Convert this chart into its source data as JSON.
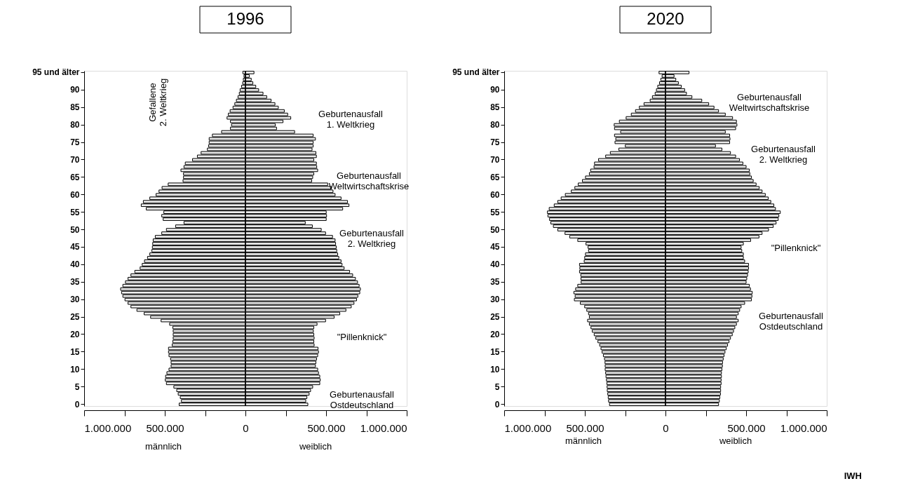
{
  "chart_data": [
    {
      "type": "bar",
      "orientation": "horizontal",
      "stacked": true,
      "title": "1996",
      "categories": [
        "95 und älter",
        null,
        null,
        null,
        null,
        "90",
        null,
        null,
        null,
        null,
        "85",
        null,
        null,
        null,
        null,
        "80",
        null,
        null,
        null,
        null,
        "75",
        null,
        null,
        null,
        null,
        "70",
        null,
        null,
        null,
        null,
        "65",
        null,
        null,
        null,
        null,
        "60",
        null,
        null,
        null,
        null,
        "55",
        null,
        null,
        null,
        null,
        "50",
        null,
        null,
        null,
        null,
        "45",
        null,
        null,
        null,
        null,
        "40",
        null,
        null,
        null,
        null,
        "35",
        null,
        null,
        null,
        null,
        "30",
        null,
        null,
        null,
        null,
        "25",
        null,
        null,
        null,
        null,
        "20",
        null,
        null,
        null,
        null,
        "15",
        null,
        null,
        null,
        null,
        "10",
        null,
        null,
        null,
        null,
        "5",
        null,
        null,
        null,
        null,
        "0"
      ],
      "series": [
        {
          "color": "#eeeeee",
          "values": [
            -16000,
            -9000,
            -13000,
            -17000,
            -24000,
            -33000,
            -38000,
            -46000,
            -56000,
            -66000,
            -77000,
            -95000,
            -106000,
            -114000,
            -93000,
            -86000,
            -93000,
            -148000,
            -205000,
            -225000,
            -225000,
            -228000,
            -236000,
            -275000,
            -298000,
            -328000,
            -373000,
            -381000,
            -400000,
            -384000,
            -384000,
            -387000,
            -479000,
            -517000,
            -536000,
            -554000,
            -593000,
            -633000,
            -646000,
            -615000,
            -506000,
            -519000,
            -510000,
            -381000,
            -433000,
            -490000,
            -519000,
            -559000,
            -572000,
            -575000,
            -577000,
            -580000,
            -593000,
            -607000,
            -626000,
            -640000,
            -653000,
            -686000,
            -710000,
            -728000,
            -744000,
            -760000,
            -774000,
            -768000,
            -760000,
            -747000,
            -728000,
            -710000,
            -673000,
            -628000,
            -588000,
            -523000,
            -470000,
            -450000,
            -448000,
            -448000,
            -448000,
            -450000,
            -454000,
            -477000,
            -477000,
            -474000,
            -464000,
            -461000,
            -461000,
            -474000,
            -487000,
            -495000,
            -497000,
            -490000,
            -444000,
            -426000,
            -417000,
            -404000,
            -397000,
            -411000
          ]
        },
        {
          "color": "#eeeeee",
          "values": [
            53000,
            24000,
            36000,
            46000,
            64000,
            82000,
            109000,
            132000,
            159000,
            183000,
            204000,
            241000,
            262000,
            281000,
            233000,
            185000,
            193000,
            305000,
            420000,
            434000,
            420000,
            420000,
            413000,
            437000,
            440000,
            424000,
            440000,
            442000,
            448000,
            424000,
            417000,
            411000,
            510000,
            532000,
            543000,
            556000,
            593000,
            633000,
            642000,
            603000,
            501000,
            503000,
            501000,
            371000,
            415000,
            470000,
            497000,
            540000,
            556000,
            559000,
            563000,
            566000,
            572000,
            579000,
            593000,
            599000,
            612000,
            646000,
            665000,
            682000,
            695000,
            705000,
            713000,
            709000,
            697000,
            689000,
            673000,
            656000,
            623000,
            585000,
            550000,
            497000,
            444000,
            424000,
            421000,
            424000,
            426000,
            424000,
            426000,
            450000,
            453000,
            448000,
            441000,
            437000,
            434000,
            448000,
            453000,
            461000,
            464000,
            461000,
            417000,
            404000,
            395000,
            381000,
            374000,
            387000
          ]
        }
      ],
      "xlim": [
        -1000000,
        1000000
      ],
      "xticks": [
        {
          "value": -1000000,
          "label": "1.000.000"
        },
        {
          "value": -750000,
          "label": null
        },
        {
          "value": -500000,
          "label": "500.000"
        },
        {
          "value": -250000,
          "label": null
        },
        0,
        {
          "value": 250000,
          "label": null
        },
        {
          "value": 500000,
          "label": "500.000"
        },
        {
          "value": 750000,
          "label": null
        },
        {
          "value": 1000000,
          "label": "1.000.000"
        }
      ],
      "annotations": [
        "Gefallene\n2. Weltkrieg",
        "Geburtenausfall\n1. Weltkrieg",
        "Geburtenausfall\nWeltwirtschaftskrise",
        "Geburtenausfall\n2. Weltkrieg",
        "\"Pillenknick\"",
        "Geburtenausfall\nOstdeutschland",
        "männlich",
        "weiblich"
      ]
    },
    {
      "type": "bar",
      "orientation": "horizontal",
      "stacked": true,
      "title": "2020",
      "categories": [
        "95 und älter",
        null,
        null,
        null,
        null,
        "90",
        null,
        null,
        null,
        null,
        "85",
        null,
        null,
        null,
        null,
        "80",
        null,
        null,
        null,
        null,
        "75",
        null,
        null,
        null,
        null,
        "70",
        null,
        null,
        null,
        null,
        "65",
        null,
        null,
        null,
        null,
        "60",
        null,
        null,
        null,
        null,
        "55",
        null,
        null,
        null,
        null,
        "50",
        null,
        null,
        null,
        null,
        "45",
        null,
        null,
        null,
        null,
        "40",
        null,
        null,
        null,
        null,
        "35",
        null,
        null,
        null,
        null,
        "30",
        null,
        null,
        null,
        null,
        "25",
        null,
        null,
        null,
        null,
        "20",
        null,
        null,
        null,
        null,
        "15",
        null,
        null,
        null,
        null,
        "10",
        null,
        null,
        null,
        null,
        "5",
        null,
        null,
        null,
        null,
        "0"
      ],
      "series": [
        {
          "color": "#eeeeee",
          "values": [
            -40000,
            -21000,
            -29000,
            -37000,
            -48000,
            -56000,
            -64000,
            -81000,
            -95000,
            -133000,
            -162000,
            -186000,
            -212000,
            -244000,
            -286000,
            -318000,
            -316000,
            -278000,
            -316000,
            -308000,
            -313000,
            -249000,
            -289000,
            -342000,
            -371000,
            -415000,
            -440000,
            -443000,
            -464000,
            -472000,
            -496000,
            -515000,
            -541000,
            -562000,
            -584000,
            -621000,
            -647000,
            -668000,
            -690000,
            -721000,
            -732000,
            -729000,
            -719000,
            -711000,
            -695000,
            -668000,
            -623000,
            -594000,
            -544000,
            -493000,
            -480000,
            -477000,
            -496000,
            -501000,
            -504000,
            -533000,
            -531000,
            -533000,
            -525000,
            -524000,
            -523000,
            -544000,
            -557000,
            -568000,
            -560000,
            -565000,
            -528000,
            -501000,
            -488000,
            -477000,
            -472000,
            -483000,
            -472000,
            -462000,
            -454000,
            -442000,
            -432000,
            -419000,
            -408000,
            -400000,
            -393000,
            -385000,
            -378000,
            -375000,
            -374000,
            -374000,
            -371000,
            -369000,
            -366000,
            -363000,
            -362000,
            -361000,
            -358000,
            -355000,
            -353000,
            -347000
          ]
        },
        {
          "color": "#eeeeee",
          "values": [
            146000,
            53000,
            64000,
            80000,
            98000,
            119000,
            130000,
            164000,
            225000,
            268000,
            301000,
            329000,
            371000,
            416000,
            440000,
            443000,
            435000,
            371000,
            398000,
            400000,
            398000,
            310000,
            350000,
            403000,
            435000,
            459000,
            480000,
            500000,
            520000,
            523000,
            533000,
            544000,
            562000,
            581000,
            599000,
            619000,
            637000,
            653000,
            672000,
            682000,
            712000,
            703000,
            699000,
            686000,
            668000,
            639000,
            599000,
            580000,
            528000,
            483000,
            469000,
            473000,
            483000,
            483000,
            491000,
            515000,
            515000,
            513000,
            509000,
            504000,
            500000,
            520000,
            527000,
            538000,
            536000,
            533000,
            491000,
            469000,
            460000,
            451000,
            440000,
            451000,
            440000,
            430000,
            422000,
            414000,
            403000,
            394000,
            385000,
            377000,
            369000,
            363000,
            358000,
            354000,
            353000,
            350000,
            347000,
            347000,
            345000,
            345000,
            342000,
            342000,
            341000,
            337000,
            334000,
            329000
          ]
        }
      ],
      "xlim": [
        -1000000,
        1000000
      ],
      "xticks": [
        {
          "value": -1000000,
          "label": "1.000.000"
        },
        {
          "value": -750000,
          "label": null
        },
        {
          "value": -500000,
          "label": "500.000"
        },
        {
          "value": -250000,
          "label": null
        },
        0,
        {
          "value": 250000,
          "label": null
        },
        {
          "value": 500000,
          "label": "500.000"
        },
        {
          "value": 750000,
          "label": null
        },
        {
          "value": 1000000,
          "label": "1.000.000"
        }
      ],
      "annotations": [
        "Geburtenausfall\nWeltwirtschaftskrise",
        "Geburtenausfall\n2. Weltkrieg",
        "\"Pillenknick\"",
        "Geburtenausfall\nOstdeutschland",
        "männlich",
        "weiblich",
        "IWH"
      ]
    }
  ]
}
